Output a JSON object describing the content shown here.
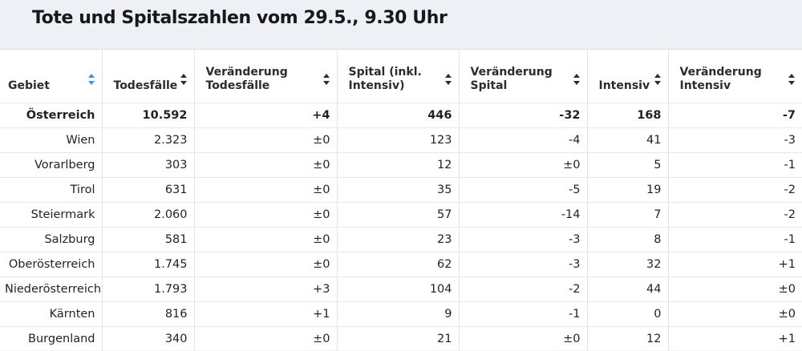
{
  "title": "Tote und Spitalszahlen vom 29.5., 9.30 Uhr",
  "colors": {
    "background": "#eef0f6",
    "table": "#ffffff",
    "sort_active": "#3a8ff0"
  },
  "headers": [
    {
      "label": "Gebiet",
      "icon": "sort-icon",
      "active": true
    },
    {
      "label": "Todesfälle",
      "icon": "sort-icon",
      "active": false
    },
    {
      "label": "Veränderung Todesfälle",
      "icon": "sort-icon",
      "active": false
    },
    {
      "label": "Spital (inkl. Intensiv)",
      "icon": "sort-icon",
      "active": false
    },
    {
      "label": "Veränderung Spital",
      "icon": "sort-icon",
      "active": false
    },
    {
      "label": "Intensiv",
      "icon": "sort-icon",
      "active": false
    },
    {
      "label": "Veränderung Intensiv",
      "icon": "sort-icon",
      "active": false
    }
  ],
  "rows": [
    [
      "Österreich",
      "10.592",
      "+4",
      "446",
      "-32",
      "168",
      "-7"
    ],
    [
      "Wien",
      "2.323",
      "±0",
      "123",
      "-4",
      "41",
      "-3"
    ],
    [
      "Vorarlberg",
      "303",
      "±0",
      "12",
      "±0",
      "5",
      "-1"
    ],
    [
      "Tirol",
      "631",
      "±0",
      "35",
      "-5",
      "19",
      "-2"
    ],
    [
      "Steiermark",
      "2.060",
      "±0",
      "57",
      "-14",
      "7",
      "-2"
    ],
    [
      "Salzburg",
      "581",
      "±0",
      "23",
      "-3",
      "8",
      "-1"
    ],
    [
      "Oberösterreich",
      "1.745",
      "±0",
      "62",
      "-3",
      "32",
      "+1"
    ],
    [
      "Niederösterreich",
      "1.793",
      "+3",
      "104",
      "-2",
      "44",
      "±0"
    ],
    [
      "Kärnten",
      "816",
      "+1",
      "9",
      "-1",
      "0",
      "±0"
    ],
    [
      "Burgenland",
      "340",
      "±0",
      "21",
      "±0",
      "12",
      "+1"
    ]
  ]
}
